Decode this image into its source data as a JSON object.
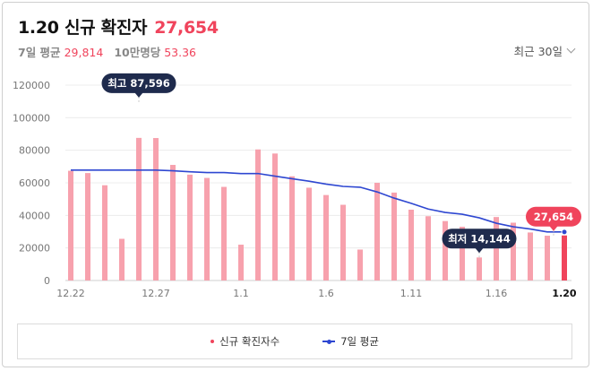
{
  "header": {
    "title": "1.20 신규 확진자",
    "count": "27,654",
    "avg_label": "7일 평균",
    "avg_value": "29,814",
    "per100k_label": "10만명당",
    "per100k_value": "53.36",
    "range_label": "최근 30일"
  },
  "legend": {
    "bars": "신규 확진자수",
    "line": "7일 평균"
  },
  "colors": {
    "bar": "#f7a1ad",
    "bar_latest": "#f0445c",
    "line": "#2e47d1",
    "tooltip_dark": "#1f2b4d",
    "tooltip_red": "#f0445c"
  },
  "chart_data": {
    "type": "bar",
    "categories": [
      "12.22",
      "12.23",
      "12.24",
      "12.25",
      "12.26",
      "12.27",
      "12.28",
      "12.29",
      "12.30",
      "12.31",
      "1.1",
      "1.2",
      "1.3",
      "1.4",
      "1.5",
      "1.6",
      "1.7",
      "1.8",
      "1.9",
      "1.10",
      "1.11",
      "1.12",
      "1.13",
      "1.14",
      "1.15",
      "1.16",
      "1.17",
      "1.18",
      "1.19",
      "1.20"
    ],
    "x_tick_labels": [
      "12.22",
      "12.27",
      "1.1",
      "1.6",
      "1.11",
      "1.16",
      "1.20"
    ],
    "y_tick_labels": [
      "0",
      "20000",
      "40000",
      "60000",
      "80000",
      "100000",
      "120000"
    ],
    "ylim": [
      0,
      120000
    ],
    "series": [
      {
        "name": "신규 확진자수",
        "type": "bar",
        "values": [
          67400,
          66000,
          58500,
          25600,
          87596,
          87500,
          71000,
          65000,
          63000,
          57500,
          22000,
          80500,
          78000,
          64000,
          57000,
          52500,
          46500,
          19000,
          60000,
          54000,
          43500,
          39500,
          36500,
          33000,
          14144,
          39000,
          35500,
          29500,
          27500,
          27654
        ]
      },
      {
        "name": "7일 평균",
        "type": "line",
        "values": [
          67800,
          67800,
          67800,
          67800,
          67800,
          67800,
          67400,
          66800,
          66300,
          66300,
          65700,
          65700,
          64100,
          62500,
          61000,
          59200,
          57800,
          57300,
          54400,
          50600,
          47400,
          43900,
          41800,
          40700,
          38500,
          35200,
          33000,
          31600,
          29814,
          29814
        ]
      }
    ],
    "annotations": [
      {
        "label": "최고 87,596",
        "index": 4
      },
      {
        "label": "최저 14,144",
        "index": 24
      },
      {
        "label": "27,654",
        "index": 29
      }
    ]
  }
}
